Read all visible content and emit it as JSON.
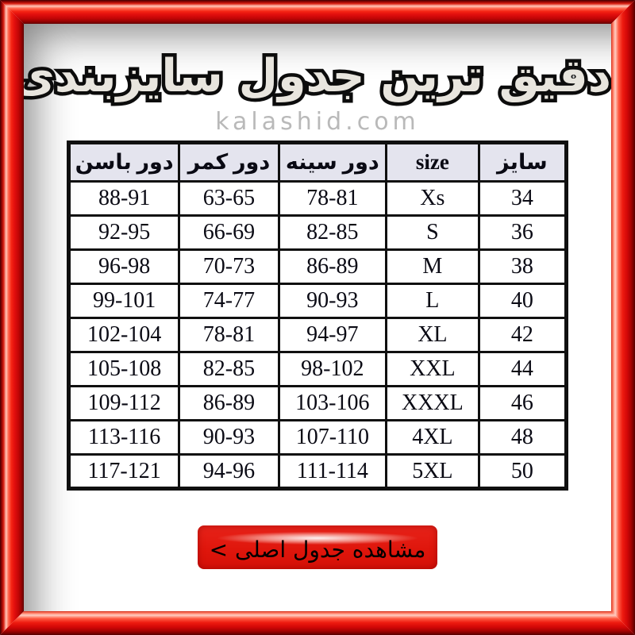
{
  "header": {
    "title": "دقیق ترین جدول سایزبندی لباس",
    "watermark": "kalashid.com"
  },
  "size_table": {
    "columns": [
      "سایز",
      "size",
      "دور سینه",
      "دور کمر",
      "دور باسن"
    ],
    "rows": [
      [
        "34",
        "Xs",
        "78-81",
        "63-65",
        "88-91"
      ],
      [
        "36",
        "S",
        "82-85",
        "66-69",
        "92-95"
      ],
      [
        "38",
        "M",
        "86-89",
        "70-73",
        "96-98"
      ],
      [
        "40",
        "L",
        "90-93",
        "74-77",
        "99-101"
      ],
      [
        "42",
        "XL",
        "94-97",
        "78-81",
        "102-104"
      ],
      [
        "44",
        "XXL",
        "98-102",
        "82-85",
        "105-108"
      ],
      [
        "46",
        "XXXL",
        "103-106",
        "86-89",
        "109-112"
      ],
      [
        "48",
        "4XL",
        "107-110",
        "90-93",
        "113-116"
      ],
      [
        "50",
        "5XL",
        "111-114",
        "94-96",
        "117-121"
      ]
    ]
  },
  "action": {
    "view_button_label": "مشاهده جدول اصلی >"
  },
  "colors": {
    "frame_bright_red": "#f52413",
    "frame_dark_red": "#520000",
    "frame_highlight": "#ffc7ba",
    "table_header_bg": "#e4e4ee",
    "table_border": "#101010",
    "button_red": "#df160c",
    "watermark_gray": "#b9b9b9",
    "title_fill": "#e8e5de",
    "title_outline": "#0c0c0c"
  }
}
